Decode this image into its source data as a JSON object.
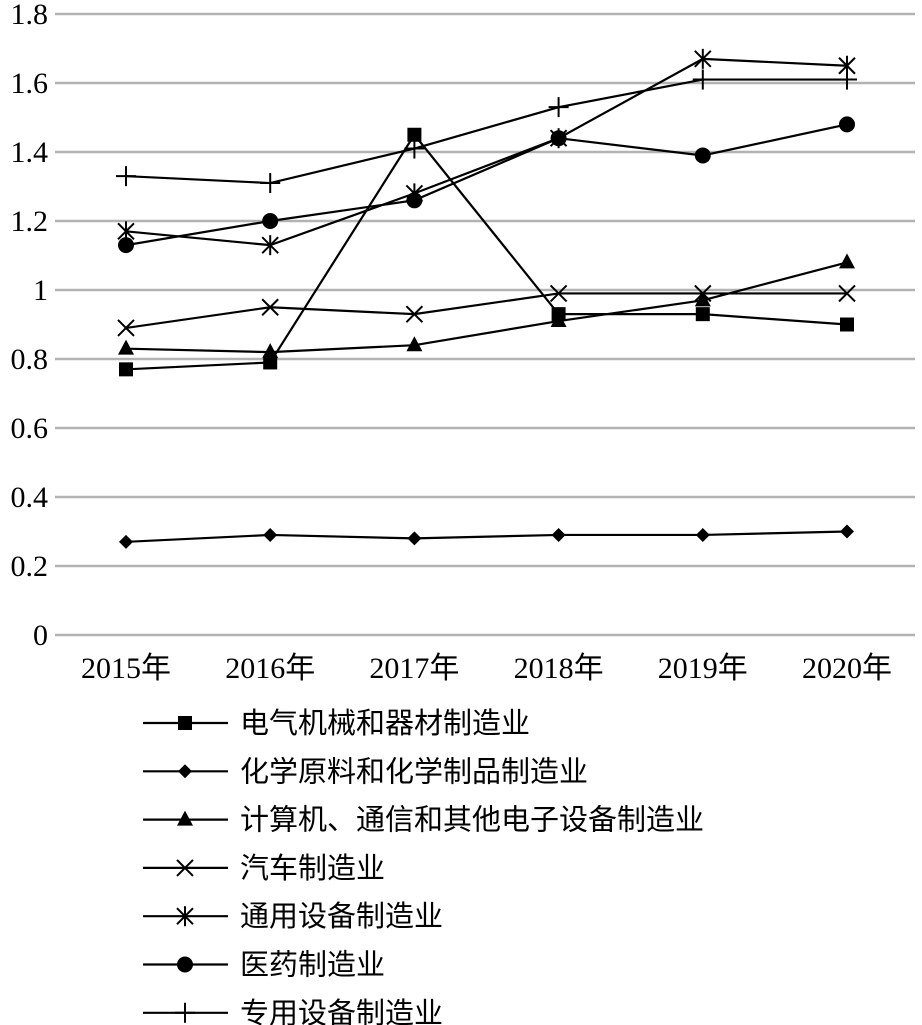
{
  "chart_data": {
    "type": "line",
    "title": "",
    "xlabel": "",
    "ylabel": "",
    "categories": [
      "2015年",
      "2016年",
      "2017年",
      "2018年",
      "2019年",
      "2020年"
    ],
    "ylim": [
      0,
      1.8
    ],
    "yticks": [
      "0",
      "0.2",
      "0.4",
      "0.6",
      "0.8",
      "1",
      "1.2",
      "1.4",
      "1.6",
      "1.8"
    ],
    "grid": true,
    "legend_position": "bottom",
    "series": [
      {
        "name": "电气机械和器材制造业",
        "marker": "square",
        "values": [
          0.77,
          0.79,
          1.45,
          0.93,
          0.93,
          0.9
        ]
      },
      {
        "name": "化学原料和化学制品制造业",
        "marker": "diamond",
        "values": [
          0.27,
          0.29,
          0.28,
          0.29,
          0.29,
          0.3
        ]
      },
      {
        "name": "计算机、通信和其他电子设备制造业",
        "marker": "triangle",
        "values": [
          0.83,
          0.82,
          0.84,
          0.91,
          0.97,
          1.08
        ]
      },
      {
        "name": "汽车制造业",
        "marker": "x",
        "values": [
          0.89,
          0.95,
          0.93,
          0.99,
          0.99,
          0.99
        ]
      },
      {
        "name": "通用设备制造业",
        "marker": "asterisk",
        "values": [
          1.17,
          1.13,
          1.28,
          1.44,
          1.67,
          1.65
        ]
      },
      {
        "name": "医药制造业",
        "marker": "circle",
        "values": [
          1.13,
          1.2,
          1.26,
          1.44,
          1.39,
          1.48
        ]
      },
      {
        "name": "专用设备制造业",
        "marker": "plus",
        "values": [
          1.33,
          1.31,
          1.41,
          1.53,
          1.61,
          1.61
        ]
      }
    ]
  }
}
